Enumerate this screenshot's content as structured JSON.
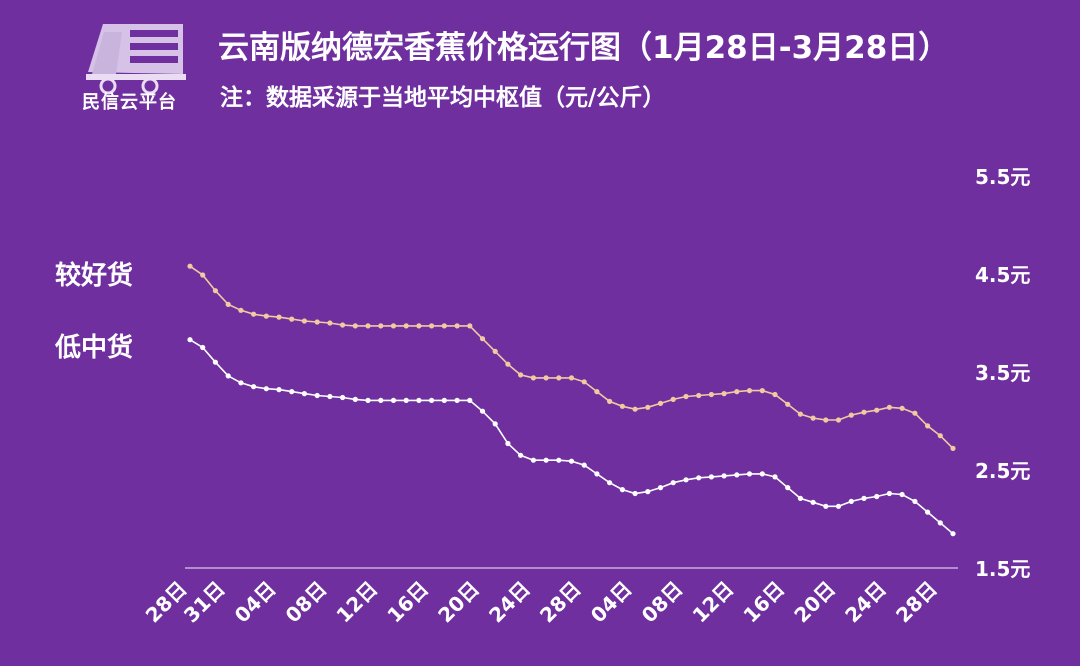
{
  "logo": {
    "icon": "truck-logo-icon",
    "text": "民信云平台"
  },
  "header": {
    "title": "云南版纳德宏香蕉价格运行图（1月28日-3月28日）",
    "subtitle": "注：数据采源于当地平均中枢值（元/公斤）"
  },
  "colors": {
    "background": "#6f2f9f",
    "series_good": "#f2c9a0",
    "series_low": "#ffffff"
  },
  "chart_data": {
    "type": "line",
    "title": "云南版纳德宏香蕉价格运行图（1月28日-3月28日）",
    "ylabel": "元/公斤",
    "ylim": [
      1.5,
      5.5
    ],
    "y_ticks": [
      "5.5元",
      "4.5元",
      "3.5元",
      "2.5元",
      "1.5元"
    ],
    "y_tick_values": [
      5.5,
      4.5,
      3.5,
      2.5,
      1.5
    ],
    "x_ticks": [
      "28日",
      "31日",
      "04日",
      "08日",
      "12日",
      "16日",
      "20日",
      "24日",
      "28日",
      "04日",
      "08日",
      "12日",
      "16日",
      "20日",
      "24日",
      "28日"
    ],
    "x_tick_index": [
      0,
      3,
      7,
      11,
      15,
      19,
      23,
      27,
      31,
      35,
      39,
      43,
      47,
      51,
      55,
      59
    ],
    "grid": false,
    "series": [
      {
        "name": "较好货",
        "values": [
          4.58,
          4.49,
          4.33,
          4.19,
          4.13,
          4.09,
          4.07,
          4.06,
          4.04,
          4.02,
          4.01,
          4.0,
          3.98,
          3.97,
          3.97,
          3.97,
          3.97,
          3.97,
          3.97,
          3.97,
          3.97,
          3.97,
          3.97,
          3.84,
          3.71,
          3.58,
          3.47,
          3.44,
          3.44,
          3.44,
          3.44,
          3.4,
          3.3,
          3.2,
          3.15,
          3.12,
          3.14,
          3.18,
          3.22,
          3.25,
          3.26,
          3.27,
          3.28,
          3.3,
          3.31,
          3.31,
          3.27,
          3.17,
          3.07,
          3.03,
          3.01,
          3.01,
          3.06,
          3.09,
          3.11,
          3.14,
          3.13,
          3.08,
          2.95,
          2.85,
          2.72
        ]
      },
      {
        "name": "低中货",
        "values": [
          3.83,
          3.75,
          3.6,
          3.46,
          3.39,
          3.35,
          3.33,
          3.32,
          3.3,
          3.28,
          3.26,
          3.25,
          3.24,
          3.22,
          3.21,
          3.21,
          3.21,
          3.21,
          3.21,
          3.21,
          3.21,
          3.21,
          3.21,
          3.1,
          2.97,
          2.77,
          2.65,
          2.6,
          2.6,
          2.6,
          2.59,
          2.55,
          2.46,
          2.37,
          2.3,
          2.26,
          2.28,
          2.32,
          2.37,
          2.4,
          2.42,
          2.43,
          2.44,
          2.45,
          2.46,
          2.46,
          2.43,
          2.32,
          2.21,
          2.17,
          2.13,
          2.13,
          2.18,
          2.21,
          2.23,
          2.26,
          2.25,
          2.18,
          2.07,
          1.96,
          1.85
        ]
      }
    ]
  }
}
